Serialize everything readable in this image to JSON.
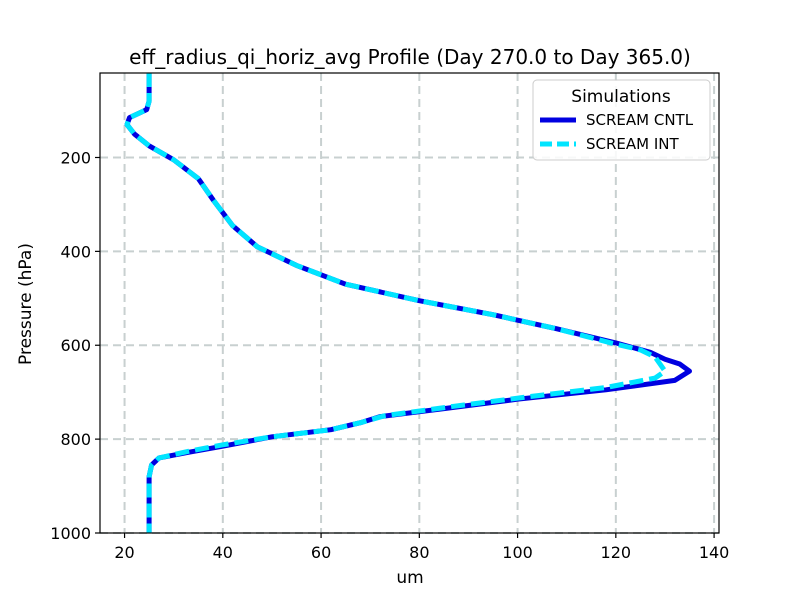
{
  "chart_data": {
    "type": "line",
    "title": "eff_radius_qi_horiz_avg Profile (Day 270.0 to Day 365.0)",
    "xlabel": "um",
    "ylabel": "Pressure (hPa)",
    "xlim": [
      15,
      141
    ],
    "ylim": [
      1000,
      20
    ],
    "y_inverted": true,
    "grid": true,
    "x_ticks": [
      20,
      40,
      60,
      80,
      100,
      120,
      140
    ],
    "y_ticks": [
      200,
      400,
      600,
      800,
      1000
    ],
    "legend": {
      "title": "Simulations",
      "position": "top-right"
    },
    "series": [
      {
        "name": "SCREAM CNTL",
        "color": "#0000e0",
        "style": "solid",
        "points": [
          [
            25,
            20
          ],
          [
            25,
            80
          ],
          [
            24.5,
            98
          ],
          [
            21,
            115
          ],
          [
            20.5,
            130
          ],
          [
            22,
            150
          ],
          [
            25,
            175
          ],
          [
            30,
            205
          ],
          [
            35,
            245
          ],
          [
            38,
            290
          ],
          [
            42,
            345
          ],
          [
            47,
            390
          ],
          [
            55,
            430
          ],
          [
            65,
            470
          ],
          [
            80,
            505
          ],
          [
            95,
            535
          ],
          [
            108,
            565
          ],
          [
            120,
            595
          ],
          [
            127,
            615
          ],
          [
            130,
            630
          ],
          [
            133,
            640
          ],
          [
            135,
            655
          ],
          [
            132,
            675
          ],
          [
            118,
            695
          ],
          [
            100,
            715
          ],
          [
            85,
            735
          ],
          [
            72,
            752
          ],
          [
            68,
            765
          ],
          [
            62,
            780
          ],
          [
            50,
            795
          ],
          [
            40,
            815
          ],
          [
            33,
            828
          ],
          [
            27,
            840
          ],
          [
            25.5,
            855
          ],
          [
            25,
            880
          ],
          [
            25,
            1000
          ]
        ]
      },
      {
        "name": "SCREAM INT",
        "color": "#00e5ff",
        "style": "dashed",
        "points": [
          [
            25,
            20
          ],
          [
            25,
            80
          ],
          [
            24.5,
            98
          ],
          [
            21,
            115
          ],
          [
            20.5,
            130
          ],
          [
            22,
            150
          ],
          [
            25,
            175
          ],
          [
            30,
            205
          ],
          [
            35,
            245
          ],
          [
            38,
            290
          ],
          [
            42,
            345
          ],
          [
            47,
            390
          ],
          [
            55,
            430
          ],
          [
            65,
            470
          ],
          [
            80,
            505
          ],
          [
            95,
            535
          ],
          [
            108,
            565
          ],
          [
            119,
            595
          ],
          [
            125,
            610
          ],
          [
            128,
            625
          ],
          [
            129,
            640
          ],
          [
            130,
            655
          ],
          [
            128,
            670
          ],
          [
            118,
            690
          ],
          [
            102,
            710
          ],
          [
            87,
            730
          ],
          [
            73,
            750
          ],
          [
            68,
            765
          ],
          [
            62,
            780
          ],
          [
            50,
            795
          ],
          [
            40,
            812
          ],
          [
            33,
            826
          ],
          [
            27,
            840
          ],
          [
            25.5,
            855
          ],
          [
            25,
            880
          ],
          [
            25,
            1000
          ]
        ]
      }
    ]
  }
}
